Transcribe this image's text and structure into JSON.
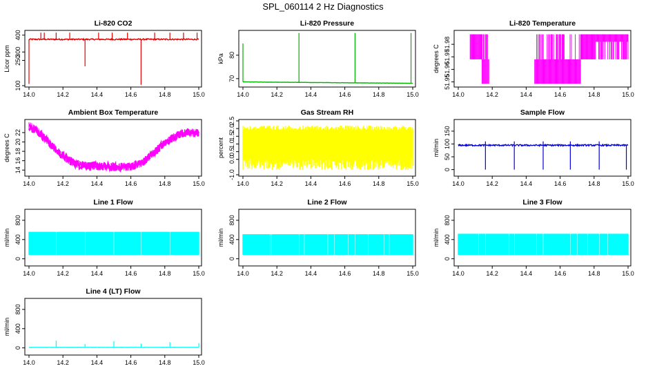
{
  "page_title": "SPL_060114  2 Hz Diagnostics",
  "colors": {
    "red": "#e00000",
    "green": "#00b000",
    "magenta": "#ff00ff",
    "yellow": "#ffff00",
    "blue": "#0000dd",
    "cyan": "#00ffff"
  },
  "chart_data": [
    {
      "type": "line",
      "title": "Li-820 CO2",
      "ylabel": "Licor ppm",
      "color": "red",
      "xlim": [
        14.0,
        15.0
      ],
      "ylim": [
        100,
        420
      ],
      "xticks": [
        14.0,
        14.2,
        14.4,
        14.6,
        14.8,
        15.0
      ],
      "yticks": [
        100,
        250,
        300,
        400
      ],
      "pattern": "noise",
      "baseline": 375,
      "noise": 4,
      "spikes": [
        [
          14.0,
          110
        ],
        [
          14.07,
          415
        ],
        [
          14.09,
          415
        ],
        [
          14.16,
          415
        ],
        [
          14.24,
          415
        ],
        [
          14.33,
          215
        ],
        [
          14.41,
          415
        ],
        [
          14.49,
          415
        ],
        [
          14.58,
          415
        ],
        [
          14.66,
          105
        ],
        [
          14.74,
          415
        ],
        [
          14.83,
          415
        ],
        [
          14.91,
          415
        ],
        [
          14.99,
          415
        ]
      ]
    },
    {
      "type": "line",
      "title": "Li-820 Pressure",
      "ylabel": "kPa",
      "color": "green",
      "xlim": [
        14.0,
        15.0
      ],
      "ylim": [
        67,
        90
      ],
      "xticks": [
        14.0,
        14.2,
        14.4,
        14.6,
        14.8,
        15.0
      ],
      "yticks": [
        70,
        80
      ],
      "pattern": "drift",
      "start": 68.6,
      "end": 68.0,
      "noise": 0.1,
      "spikes": [
        [
          14.0,
          85
        ],
        [
          14.33,
          89.5
        ],
        [
          14.66,
          89.5
        ],
        [
          14.99,
          89.5
        ]
      ]
    },
    {
      "type": "line",
      "title": "Li-820 Temperature",
      "ylabel": "degrees C",
      "color": "magenta",
      "xlim": [
        14.0,
        15.0
      ],
      "ylim": [
        51.947,
        51.99
      ],
      "xticks": [
        14.0,
        14.2,
        14.4,
        14.6,
        14.8,
        15.0
      ],
      "yticks": [
        51.95,
        51.96,
        51.97,
        51.98
      ],
      "pattern": "quantized",
      "hi": 51.988,
      "mid": 51.968,
      "lo": 51.9485,
      "segments": [
        [
          14.0,
          14.07,
          "hi"
        ],
        [
          14.07,
          14.14,
          "flip-hi-mid"
        ],
        [
          14.14,
          14.18,
          "flip-mid-lo"
        ],
        [
          14.18,
          14.45,
          "lo"
        ],
        [
          14.45,
          14.72,
          "flip-mid-lo"
        ],
        [
          14.72,
          14.8,
          "flip-mid-hi"
        ],
        [
          14.8,
          15.0,
          "flip-hi"
        ]
      ]
    },
    {
      "type": "line",
      "title": "Ambient Box Temperature",
      "ylabel": "degrees C",
      "color": "magenta",
      "xlim": [
        14.0,
        15.0
      ],
      "ylim": [
        13,
        24.5
      ],
      "xticks": [
        14.0,
        14.2,
        14.4,
        14.6,
        14.8,
        15.0
      ],
      "yticks": [
        14,
        16,
        18,
        20,
        22
      ],
      "pattern": "band",
      "noise": 0.9,
      "curve": [
        [
          14.0,
          23.5
        ],
        [
          14.05,
          22.3
        ],
        [
          14.1,
          20.6
        ],
        [
          14.15,
          18.6
        ],
        [
          14.2,
          17.0
        ],
        [
          14.25,
          15.8
        ],
        [
          14.3,
          15.1
        ],
        [
          14.4,
          14.8
        ],
        [
          14.5,
          14.6
        ],
        [
          14.6,
          14.8
        ],
        [
          14.67,
          15.6
        ],
        [
          14.72,
          17.2
        ],
        [
          14.78,
          19.2
        ],
        [
          14.85,
          21.0
        ],
        [
          14.9,
          21.8
        ],
        [
          15.0,
          22.0
        ]
      ]
    },
    {
      "type": "line",
      "title": "Gas Stream RH",
      "ylabel": "percent",
      "color": "yellow",
      "xlim": [
        14.0,
        15.0
      ],
      "ylim": [
        -1.0,
        2.5
      ],
      "xticks": [
        14.0,
        14.2,
        14.4,
        14.6,
        14.8,
        15.0
      ],
      "yticks": [
        -1.0,
        0.0,
        0.5,
        1.0,
        1.5,
        2.0,
        2.5
      ],
      "pattern": "fill",
      "lo": 0.0,
      "hi": 2.2,
      "minlo": -0.7
    },
    {
      "type": "line",
      "title": "Sample Flow",
      "ylabel": "ml/min",
      "color": "blue",
      "xlim": [
        14.0,
        15.0
      ],
      "ylim": [
        -20,
        190
      ],
      "xticks": [
        14.0,
        14.2,
        14.4,
        14.6,
        14.8,
        15.0
      ],
      "yticks": [
        0,
        50,
        100,
        150
      ],
      "pattern": "noise",
      "baseline": 95,
      "noise": 3,
      "spikes": [
        [
          14.16,
          0
        ],
        [
          14.16,
          110
        ],
        [
          14.33,
          0
        ],
        [
          14.33,
          110
        ],
        [
          14.5,
          0
        ],
        [
          14.5,
          110
        ],
        [
          14.66,
          0
        ],
        [
          14.66,
          110
        ],
        [
          14.83,
          0
        ],
        [
          14.83,
          110
        ],
        [
          14.99,
          0
        ]
      ]
    },
    {
      "type": "line",
      "title": "Line 1 Flow",
      "ylabel": "ml/min",
      "color": "cyan",
      "xlim": [
        14.0,
        15.0
      ],
      "ylim": [
        -120,
        1000
      ],
      "xticks": [
        14.0,
        14.2,
        14.4,
        14.6,
        14.8,
        15.0
      ],
      "yticks": [
        0,
        400,
        800
      ],
      "pattern": "fill",
      "lo": 80,
      "hi": 560,
      "gaps": [
        14.16,
        14.33,
        14.5,
        14.66,
        14.83
      ]
    },
    {
      "type": "line",
      "title": "Line 2 Flow",
      "ylabel": "ml/min",
      "color": "cyan",
      "xlim": [
        14.0,
        15.0
      ],
      "ylim": [
        -120,
        1000
      ],
      "xticks": [
        14.0,
        14.2,
        14.4,
        14.6,
        14.8,
        15.0
      ],
      "yticks": [
        0,
        400,
        800
      ],
      "pattern": "fill",
      "lo": 80,
      "hi": 510,
      "gaps": [
        14.16,
        14.33,
        14.5,
        14.66,
        14.83,
        14.17,
        14.36,
        14.54,
        14.62,
        14.74,
        14.86
      ]
    },
    {
      "type": "line",
      "title": "Line 3 Flow",
      "ylabel": "ml/min",
      "color": "cyan",
      "xlim": [
        14.0,
        15.0
      ],
      "ylim": [
        -120,
        1000
      ],
      "xticks": [
        14.0,
        14.2,
        14.4,
        14.6,
        14.8,
        15.0
      ],
      "yticks": [
        0,
        400,
        800
      ],
      "pattern": "fill",
      "lo": 80,
      "hi": 520,
      "gaps": [
        14.16,
        14.33,
        14.5,
        14.66,
        14.83,
        14.12,
        14.3,
        14.46,
        14.7,
        14.76,
        14.88
      ]
    },
    {
      "type": "line",
      "title": "Line 4 (LT) Flow",
      "ylabel": "ml/min",
      "color": "cyan",
      "xlim": [
        14.0,
        15.0
      ],
      "ylim": [
        -120,
        1000
      ],
      "xticks": [
        14.0,
        14.2,
        14.4,
        14.6,
        14.8,
        15.0
      ],
      "yticks": [
        0,
        400,
        800
      ],
      "pattern": "noise",
      "baseline": 10,
      "noise": 3,
      "spikes": [
        [
          14.16,
          150
        ],
        [
          14.33,
          80
        ],
        [
          14.5,
          140
        ],
        [
          14.66,
          90
        ],
        [
          14.83,
          120
        ],
        [
          15.0,
          100
        ]
      ]
    }
  ]
}
